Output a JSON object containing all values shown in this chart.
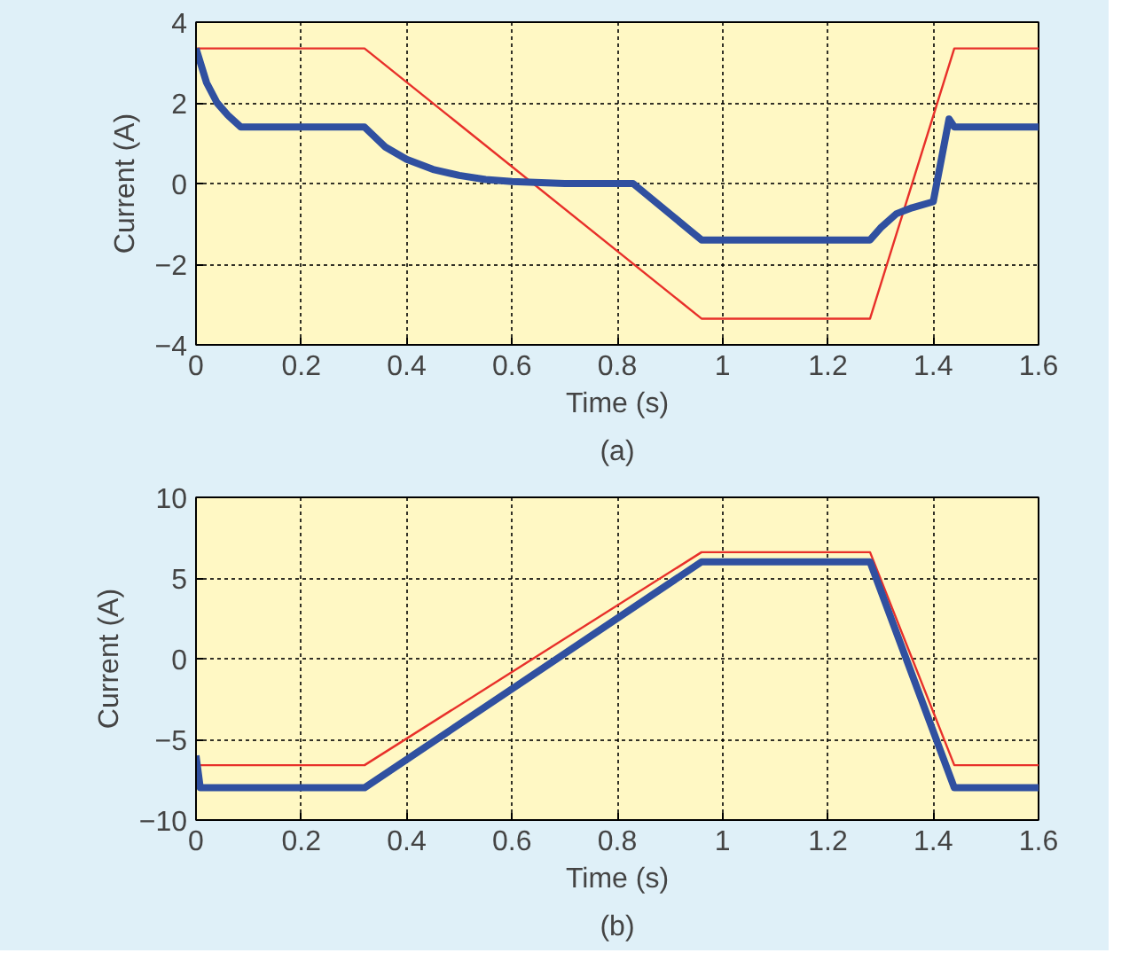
{
  "chart_data": [
    {
      "type": "line",
      "xlabel": "Time (s)",
      "ylabel": "Current (A)",
      "annotations": [
        "(a)"
      ],
      "xlim": [
        0,
        1.6
      ],
      "ylim": [
        -4,
        4
      ],
      "xticks": [
        0,
        0.2,
        0.4,
        0.6,
        0.8,
        1,
        1.2,
        1.4,
        1.6
      ],
      "yticks": [
        -4,
        -2,
        0,
        2,
        4
      ],
      "grid": true,
      "line_style": "solid",
      "series": [
        {
          "color": "#e8302a",
          "x": [
            0,
            0.32,
            0.96,
            1.28,
            1.44,
            1.6
          ],
          "values": [
            3.35,
            3.35,
            -3.35,
            -3.35,
            3.35,
            3.35
          ]
        },
        {
          "color": "#3050a0",
          "x": [
            0,
            0.02,
            0.04,
            0.06,
            0.085,
            0.32,
            0.36,
            0.4,
            0.45,
            0.5,
            0.55,
            0.6,
            0.7,
            0.83,
            0.96,
            1.28,
            1.3,
            1.33,
            1.36,
            1.4,
            1.43,
            1.44,
            1.6
          ],
          "values": [
            3.35,
            2.5,
            2.0,
            1.7,
            1.4,
            1.4,
            0.9,
            0.6,
            0.35,
            0.2,
            0.1,
            0.05,
            0,
            0,
            -1.4,
            -1.4,
            -1.1,
            -0.75,
            -0.6,
            -0.45,
            1.6,
            1.4,
            1.4
          ]
        }
      ]
    },
    {
      "type": "line",
      "xlabel": "Time (s)",
      "ylabel": "Current (A)",
      "annotations": [
        "(b)"
      ],
      "xlim": [
        0,
        1.6
      ],
      "ylim": [
        -10,
        10
      ],
      "xticks": [
        0,
        0.2,
        0.4,
        0.6,
        0.8,
        1,
        1.2,
        1.4,
        1.6
      ],
      "yticks": [
        {
          "value": -10,
          "label": "−10"
        },
        {
          "value": -5,
          "label": "−5"
        },
        0,
        5,
        10
      ],
      "grid": true,
      "line_style": "solid",
      "series": [
        {
          "color": "#e8302a",
          "x": [
            0,
            0.32,
            0.96,
            1.28,
            1.44,
            1.6
          ],
          "values": [
            -6.6,
            -6.6,
            6.6,
            6.6,
            -6.6,
            -6.6
          ]
        },
        {
          "color": "#3050a0",
          "x": [
            0,
            0.008,
            0.32,
            0.96,
            1.28,
            1.44,
            1.6
          ],
          "values": [
            -6,
            -8,
            -8,
            6,
            6,
            -8,
            -8
          ]
        }
      ]
    }
  ]
}
